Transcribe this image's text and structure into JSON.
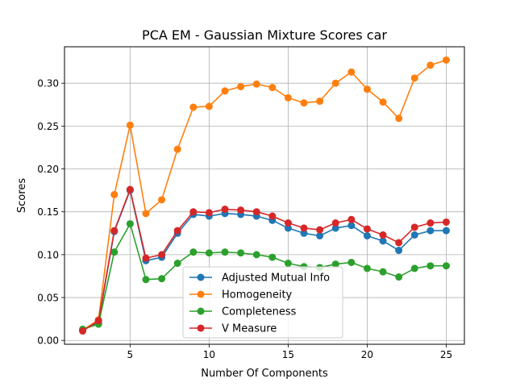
{
  "chart_data": {
    "type": "line",
    "title": "PCA EM - Gaussian Mixture Scores car",
    "xlabel": "Number Of Components",
    "ylabel": "Scores",
    "x": [
      2,
      3,
      4,
      5,
      6,
      7,
      8,
      9,
      10,
      11,
      12,
      13,
      14,
      15,
      16,
      17,
      18,
      19,
      20,
      21,
      22,
      23,
      24,
      25
    ],
    "xlim": [
      0.85,
      26.15
    ],
    "ylim": [
      -0.0045,
      0.3425
    ],
    "xticks": [
      5,
      10,
      15,
      20,
      25
    ],
    "yticks": [
      0.0,
      0.05,
      0.1,
      0.15,
      0.2,
      0.25,
      0.3
    ],
    "xtick_labels": [
      "5",
      "10",
      "15",
      "20",
      "25"
    ],
    "ytick_labels": [
      "0.00",
      "0.05",
      "0.10",
      "0.15",
      "0.20",
      "0.25",
      "0.30"
    ],
    "grid": true,
    "legend_position": "lower-center",
    "series": [
      {
        "name": "Adjusted Mutual Info",
        "color": "#1f77b4",
        "values": [
          0.012,
          0.021,
          0.127,
          0.175,
          0.093,
          0.097,
          0.125,
          0.147,
          0.145,
          0.148,
          0.147,
          0.145,
          0.14,
          0.131,
          0.125,
          0.122,
          0.131,
          0.134,
          0.122,
          0.116,
          0.105,
          0.123,
          0.128,
          0.128
        ]
      },
      {
        "name": "Homogeneity",
        "color": "#ff7f0e",
        "values": [
          0.012,
          0.024,
          0.17,
          0.251,
          0.148,
          0.164,
          0.223,
          0.272,
          0.273,
          0.291,
          0.296,
          0.299,
          0.295,
          0.283,
          0.277,
          0.279,
          0.3,
          0.313,
          0.293,
          0.278,
          0.259,
          0.306,
          0.321,
          0.327
        ]
      },
      {
        "name": "Completeness",
        "color": "#2ca02c",
        "values": [
          0.013,
          0.019,
          0.103,
          0.136,
          0.071,
          0.072,
          0.09,
          0.103,
          0.102,
          0.103,
          0.102,
          0.1,
          0.097,
          0.09,
          0.086,
          0.085,
          0.089,
          0.091,
          0.084,
          0.08,
          0.074,
          0.084,
          0.087,
          0.087
        ]
      },
      {
        "name": "V Measure",
        "color": "#d62728",
        "values": [
          0.011,
          0.023,
          0.128,
          0.176,
          0.096,
          0.1,
          0.128,
          0.15,
          0.149,
          0.153,
          0.152,
          0.15,
          0.145,
          0.137,
          0.131,
          0.129,
          0.137,
          0.141,
          0.13,
          0.123,
          0.114,
          0.132,
          0.137,
          0.138
        ]
      }
    ]
  }
}
